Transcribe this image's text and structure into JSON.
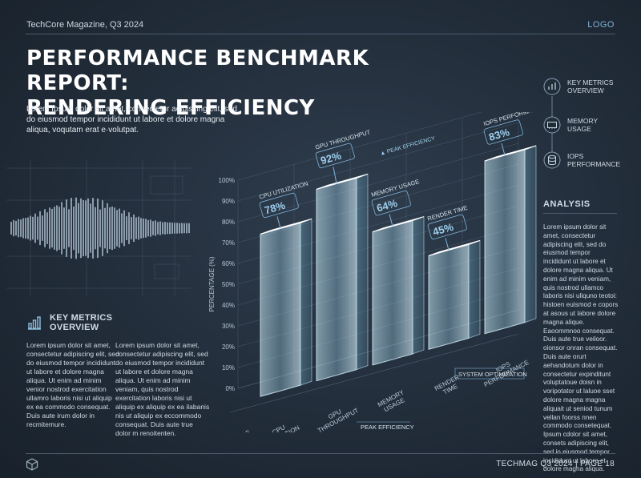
{
  "header": {
    "magazine": "TechCore Magazine, Q3 2024",
    "logo": "LOGO"
  },
  "title_line1": "PERFORMANCE BENCHMARK REPORT:",
  "title_line2": "RENDERING EFFICIENCY",
  "intro": "Lorem Ipsum dolor sit amet, consectetur adipiscing elit, sed do eiusmod tempor incididunt ut labore et dolore magna aliqua, voqutam erat e·volutpat.",
  "key_metrics": {
    "title_line1": "KEY METRICS",
    "title_line2": "OVERVIEW",
    "col1": "Lorem ipsum dolor sit amet, consectetur adipiscing elit, sed do eiusmod tempor incididunt ut labore et dolore magna aliqua. Ut enim ad minim venior nostrod exercitation ullamro laboris nisi ut aliquip ex ea commodo consequat. Duis aute irum dolor in recmitemure.",
    "col2": "Lorem ipsum dolor sit amet, consectetur adipiscing elit, sed do eiusmod tempor incididunt ut labore et dolore magna aliqua. Ut enim ad minim veniam, quis nostrod exercitation laboris nisi ut aliquip ex aliquip ex ea ilabanis nis ut aliquip ex eccommodo consequat. Duis aute true dolor m renoitenten."
  },
  "sidebar": {
    "items": [
      {
        "line1": "KEY METRICS",
        "line2": "OVERVIEW",
        "icon": "bar-chart-icon"
      },
      {
        "line1": "MEMORY",
        "line2": "USAGE",
        "icon": "memory-chip-icon"
      },
      {
        "line1": "IOPS",
        "line2": "PERFORMANCE",
        "icon": "database-icon"
      }
    ],
    "analysis_title": "ANALYSIS",
    "analysis_text": "Lorem ipsum dolor sit amet, consectetur adipiscing elit, sed do eiusmod tempor incididunt ut labore et dolore magna aliqua. Ut enim ad minim veniam, quis nostrod ullamco laboris nisi uliquno teotoi: histoen euismod e copors at asous ut labore dolore magna alique. Eaoommnoo consequat. Duis aute true veiloor. oionsor onran consequat. Duis aute orurt aehandotum dolor in consectetur expinditunt voluptatoue doisn in voripotator ut laluoe sset dolore magna magna aliquait ut seniod tunum vellan foorss nnen commodo consetequat. Ipsum cdolor sit amet, consets adipiscing elit, sed io eiusmod tempor incididunt ut labore et dolore magna aliqua."
  },
  "footer": {
    "text": "TECHMAG Q3 2024  |  PAGE 18"
  },
  "colors": {
    "accent": "#7fb3d9",
    "bar_fill": "#a9dcef",
    "background": "#222d3a"
  },
  "chart_data": {
    "type": "bar",
    "ylabel": "PERCENTAGE (%)",
    "ylim": [
      0,
      100
    ],
    "yticks": [
      "0%",
      "10%",
      "20%",
      "30%",
      "40%",
      "50%",
      "60%",
      "70%",
      "80%",
      "90%",
      "100%"
    ],
    "categories": [
      {
        "line1": "CPU",
        "line2": "UTILIZATION"
      },
      {
        "line1": "GPU",
        "line2": "THROUGHPUT"
      },
      {
        "line1": "MEMORY",
        "line2": "USAGE"
      },
      {
        "line1": "RENDER",
        "line2": "TIME"
      },
      {
        "line1": "IOPS",
        "line2": "PERFORMANCE"
      }
    ],
    "values": [
      78,
      92,
      64,
      45,
      83
    ],
    "value_labels": [
      "78%",
      "92%",
      "64%",
      "45%",
      "83%"
    ],
    "callout_titles": [
      "CPU UTILIZATION",
      "GPU THROUGHPUT",
      "MEMORY USAGE",
      "RENDER TIME",
      "IOPS PERFORMANCE"
    ],
    "axis_origin_label": {
      "line1": "PERFORMANCE",
      "line2": "METRICS"
    },
    "annotations": {
      "peak_efficiency_top": "▲ PEAK EFFICIENCY",
      "peak_efficiency_bottom": "PEAK EFFICIENCY",
      "system_optimization": "SYSTEM OPTIMIZATION"
    }
  }
}
